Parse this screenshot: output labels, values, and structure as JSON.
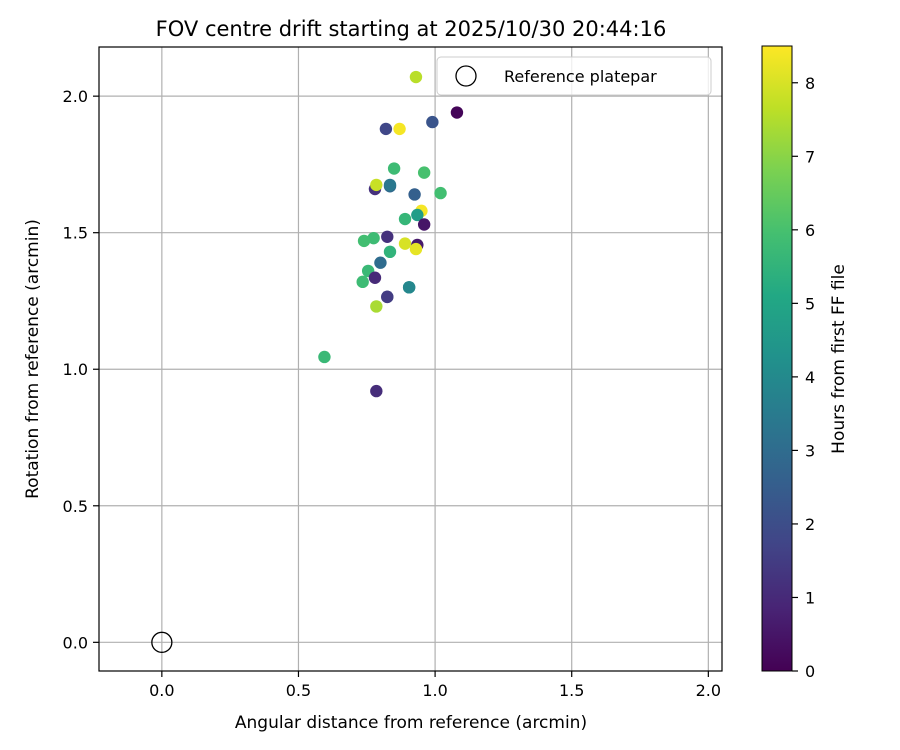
{
  "chart_data": {
    "type": "scatter",
    "title": "FOV centre drift starting at 2025/10/30 20:44:16",
    "xlabel": "Angular distance from reference (arcmin)",
    "ylabel": "Rotation from reference (arcmin)",
    "xlim": [
      -0.23,
      2.05
    ],
    "ylim": [
      -0.105,
      2.18
    ],
    "xticks": [
      0.0,
      0.5,
      1.0,
      1.5,
      2.0
    ],
    "xtick_labels": [
      "0.0",
      "0.5",
      "1.0",
      "1.5",
      "2.0"
    ],
    "yticks": [
      0.0,
      0.5,
      1.0,
      1.5,
      2.0
    ],
    "ytick_labels": [
      "0.0",
      "0.5",
      "1.0",
      "1.5",
      "2.0"
    ],
    "grid": true,
    "legend": {
      "placement": "top-right",
      "entries": [
        "Reference platepar"
      ]
    },
    "reference_point": {
      "x": 0.0,
      "y": 0.0,
      "label": "Reference platepar"
    },
    "colorbar": {
      "label": "Hours from first FF file",
      "range": [
        0,
        8.5
      ],
      "ticks": [
        0,
        1,
        2,
        3,
        4,
        5,
        6,
        7,
        8
      ],
      "tick_labels": [
        "0",
        "1",
        "2",
        "3",
        "4",
        "5",
        "6",
        "7",
        "8"
      ],
      "colormap": "viridis"
    },
    "series": [
      {
        "name": "FOV centre drift",
        "points": [
          {
            "x": 0.93,
            "y": 2.07,
            "h": 7.6
          },
          {
            "x": 1.08,
            "y": 1.94,
            "h": 0.1
          },
          {
            "x": 0.99,
            "y": 1.905,
            "h": 2.2
          },
          {
            "x": 0.82,
            "y": 1.88,
            "h": 1.8
          },
          {
            "x": 0.87,
            "y": 1.88,
            "h": 8.4
          },
          {
            "x": 0.85,
            "y": 1.735,
            "h": 5.8
          },
          {
            "x": 0.96,
            "y": 1.72,
            "h": 6.0
          },
          {
            "x": 0.78,
            "y": 1.66,
            "h": 1.2
          },
          {
            "x": 0.785,
            "y": 1.675,
            "h": 7.8
          },
          {
            "x": 0.835,
            "y": 1.67,
            "h": 2.9
          },
          {
            "x": 0.835,
            "y": 1.675,
            "h": 3.4
          },
          {
            "x": 0.925,
            "y": 1.64,
            "h": 2.6
          },
          {
            "x": 1.02,
            "y": 1.645,
            "h": 5.9
          },
          {
            "x": 0.95,
            "y": 1.58,
            "h": 8.4
          },
          {
            "x": 0.935,
            "y": 1.565,
            "h": 4.7
          },
          {
            "x": 0.89,
            "y": 1.55,
            "h": 5.6
          },
          {
            "x": 0.96,
            "y": 1.53,
            "h": 0.5
          },
          {
            "x": 0.775,
            "y": 1.48,
            "h": 5.8
          },
          {
            "x": 0.74,
            "y": 1.47,
            "h": 5.9
          },
          {
            "x": 0.825,
            "y": 1.485,
            "h": 1.2
          },
          {
            "x": 0.89,
            "y": 1.46,
            "h": 8.0
          },
          {
            "x": 0.935,
            "y": 1.455,
            "h": 0.6
          },
          {
            "x": 0.93,
            "y": 1.44,
            "h": 8.2
          },
          {
            "x": 0.835,
            "y": 1.43,
            "h": 5.5
          },
          {
            "x": 0.8,
            "y": 1.39,
            "h": 3.0
          },
          {
            "x": 0.755,
            "y": 1.36,
            "h": 5.7
          },
          {
            "x": 0.78,
            "y": 1.335,
            "h": 1.0
          },
          {
            "x": 0.735,
            "y": 1.32,
            "h": 5.8
          },
          {
            "x": 0.905,
            "y": 1.3,
            "h": 4.4
          },
          {
            "x": 0.905,
            "y": 1.3,
            "h": 3.9
          },
          {
            "x": 0.825,
            "y": 1.265,
            "h": 2.3
          },
          {
            "x": 0.825,
            "y": 1.265,
            "h": 1.5
          },
          {
            "x": 0.785,
            "y": 1.23,
            "h": 7.4
          },
          {
            "x": 0.595,
            "y": 1.045,
            "h": 5.7
          },
          {
            "x": 0.785,
            "y": 0.92,
            "h": 1.1
          }
        ]
      }
    ]
  }
}
